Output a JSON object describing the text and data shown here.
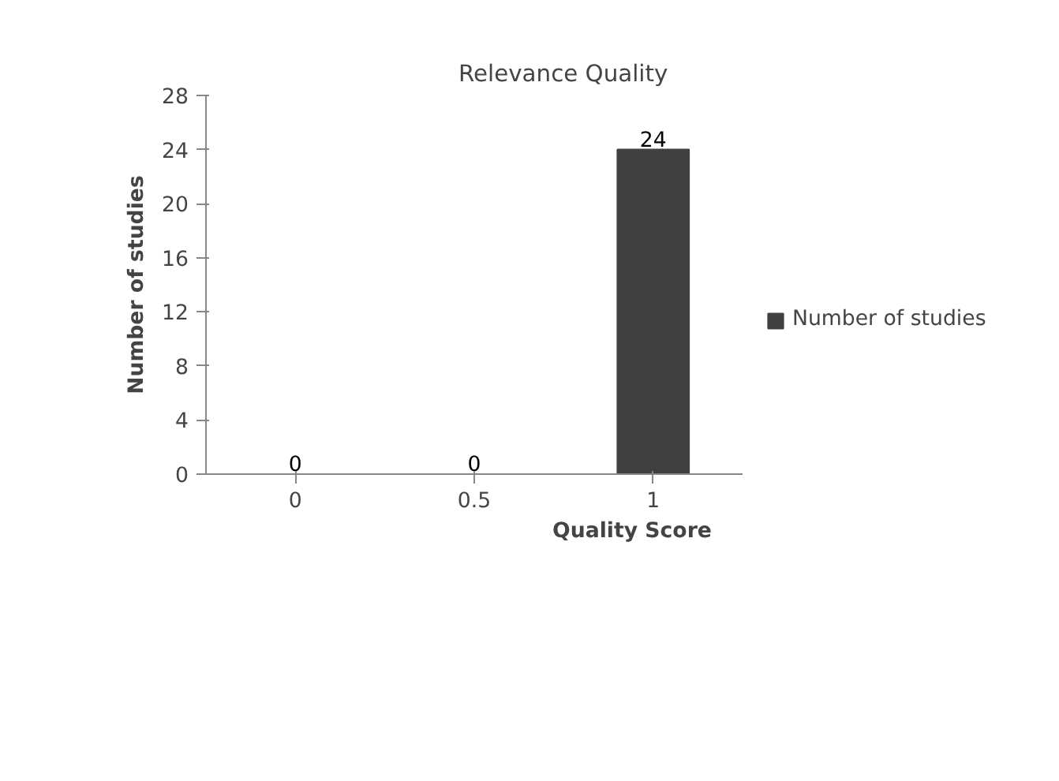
{
  "chart_data": {
    "type": "bar",
    "title": "Relevance Quality",
    "xlabel": "Quality Score",
    "ylabel": "Number of studies",
    "categories": [
      "0",
      "0.5",
      "1"
    ],
    "series": [
      {
        "name": "Number of studies",
        "color": "#404040",
        "values": [
          0,
          0,
          24
        ]
      }
    ],
    "ylim": [
      0,
      28
    ],
    "yticks": [
      0,
      4,
      8,
      12,
      16,
      20,
      24,
      28
    ],
    "data_labels": true,
    "legend": "right",
    "grid": false
  }
}
